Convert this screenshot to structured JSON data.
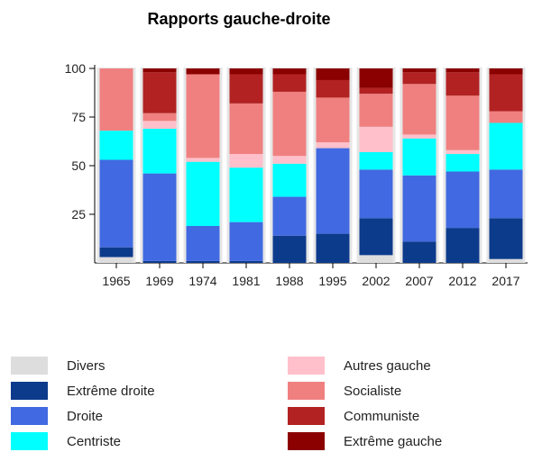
{
  "chart_data": {
    "type": "bar",
    "stacked": true,
    "title": "Rapports gauche-droite",
    "xlabel": "",
    "ylabel": "",
    "ylim": [
      0,
      100
    ],
    "yticks": [
      25,
      50,
      75,
      100
    ],
    "grid": false,
    "legend_position": "bottom",
    "categories": [
      "1965",
      "1969",
      "1974",
      "1981",
      "1988",
      "1995",
      "2002",
      "2007",
      "2012",
      "2017"
    ],
    "series": [
      {
        "name": "Divers",
        "color": "#dddddd",
        "values": [
          3,
          0,
          0,
          0,
          0,
          0,
          4,
          0,
          0,
          2
        ]
      },
      {
        "name": "Extrême droite",
        "color": "#0d3b8c",
        "values": [
          5,
          1,
          1,
          1,
          14,
          15,
          19,
          11,
          18,
          21
        ]
      },
      {
        "name": "Droite",
        "color": "#4169e1",
        "values": [
          45,
          45,
          18,
          20,
          20,
          44,
          25,
          34,
          29,
          25
        ]
      },
      {
        "name": "Centriste",
        "color": "#00ffff",
        "values": [
          15,
          23,
          33,
          28,
          17,
          0,
          9,
          19,
          9,
          24
        ]
      },
      {
        "name": "Autres gauche",
        "color": "#ffc0cb",
        "values": [
          0,
          4,
          2,
          7,
          4,
          3,
          13,
          2,
          2,
          0
        ]
      },
      {
        "name": "Socialiste",
        "color": "#f08080",
        "values": [
          32,
          4,
          43,
          26,
          33,
          23,
          17,
          26,
          28,
          6
        ]
      },
      {
        "name": "Communiste",
        "color": "#b22222",
        "values": [
          0,
          21,
          0,
          15,
          9,
          9,
          3,
          6,
          12,
          19
        ]
      },
      {
        "name": "Extrême gauche",
        "color": "#8b0000",
        "values": [
          0,
          2,
          3,
          3,
          3,
          6,
          10,
          2,
          2,
          3
        ]
      }
    ],
    "legend_order": [
      "Divers",
      "Extrême droite",
      "Droite",
      "Centriste",
      "Autres gauche",
      "Socialiste",
      "Communiste",
      "Extrême gauche"
    ]
  }
}
